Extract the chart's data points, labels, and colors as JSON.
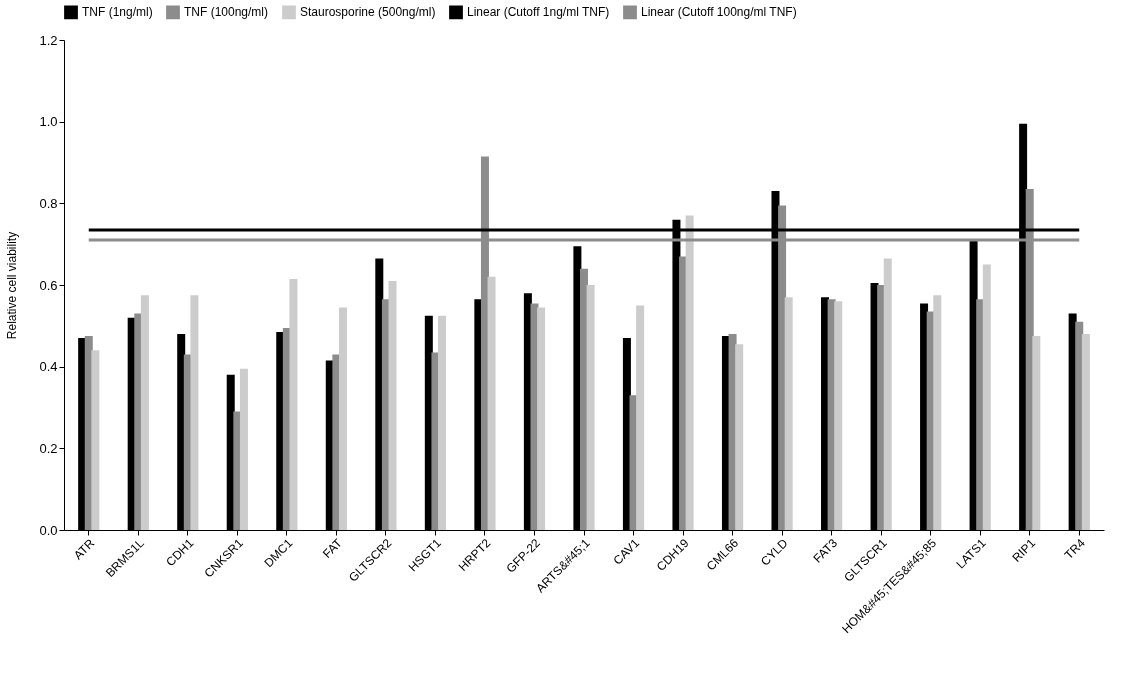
{
  "chart_data": {
    "type": "bar",
    "ylabel": "Relative cell viability",
    "categories": [
      "ATR",
      "BRMS1L",
      "CDH1",
      "CNKSR1",
      "DMC1",
      "FAT",
      "GLTSCR2",
      "HSGT1",
      "HRPT2",
      "GFP-22",
      "ARTS&#45;1",
      "CAV1",
      "CDH19",
      "CML66",
      "CYLD",
      "FAT3",
      "GLTSCR1",
      "HOM&#45;TES&#45;85",
      "LATS1",
      "RIP1",
      "TR4"
    ],
    "series": [
      {
        "name": "TNF (1ng/ml)",
        "color": "#000000",
        "values": [
          0.47,
          0.52,
          0.48,
          0.38,
          0.485,
          0.415,
          0.665,
          0.525,
          0.565,
          0.58,
          0.695,
          0.47,
          0.76,
          0.475,
          0.83,
          0.57,
          0.605,
          0.555,
          0.71,
          0.995,
          0.53
        ]
      },
      {
        "name": "TNF (100ng/ml)",
        "color": "#8c8c8c",
        "values": [
          0.475,
          0.53,
          0.43,
          0.29,
          0.495,
          0.43,
          0.565,
          0.435,
          0.915,
          0.555,
          0.64,
          0.33,
          0.67,
          0.48,
          0.795,
          0.565,
          0.6,
          0.535,
          0.565,
          0.835,
          0.51
        ]
      },
      {
        "name": "Staurosporine (500ng/ml)",
        "color": "#cccccc",
        "values": [
          0.44,
          0.575,
          0.575,
          0.395,
          0.615,
          0.545,
          0.61,
          0.525,
          0.62,
          0.545,
          0.6,
          0.55,
          0.77,
          0.455,
          0.57,
          0.56,
          0.665,
          0.575,
          0.65,
          0.475,
          0.48
        ]
      },
      {
        "name": "Linear (Cutoff 1ng/ml TNF)",
        "type": "line",
        "color": "#000000",
        "values": [
          0.735,
          0.735,
          0.735,
          0.735,
          0.735,
          0.735,
          0.735,
          0.735,
          0.735,
          0.735,
          0.735,
          0.735,
          0.735,
          0.735,
          0.735,
          0.735,
          0.735,
          0.735,
          0.735,
          0.735,
          0.735
        ]
      },
      {
        "name": "Linear (Cutoff 100ng/ml TNF)",
        "type": "line",
        "color": "#8c8c8c",
        "values": [
          0.71,
          0.71,
          0.71,
          0.71,
          0.71,
          0.71,
          0.71,
          0.71,
          0.71,
          0.71,
          0.71,
          0.71,
          0.71,
          0.71,
          0.71,
          0.71,
          0.71,
          0.71,
          0.71,
          0.71,
          0.71
        ]
      }
    ],
    "ylim": [
      0,
      1.2
    ],
    "yticks": [
      {
        "value": 0,
        "label": "0.0"
      },
      {
        "value": 0.2,
        "label": "0.2"
      },
      {
        "value": 0.4,
        "label": "0.4"
      },
      {
        "value": 0.6,
        "label": "0.6"
      },
      {
        "value": 0.8,
        "label": "0.8"
      },
      {
        "value": 1.0,
        "label": "1.0"
      },
      {
        "value": 1.2,
        "label": "1.2"
      }
    ],
    "legend": "top",
    "grid": false
  }
}
